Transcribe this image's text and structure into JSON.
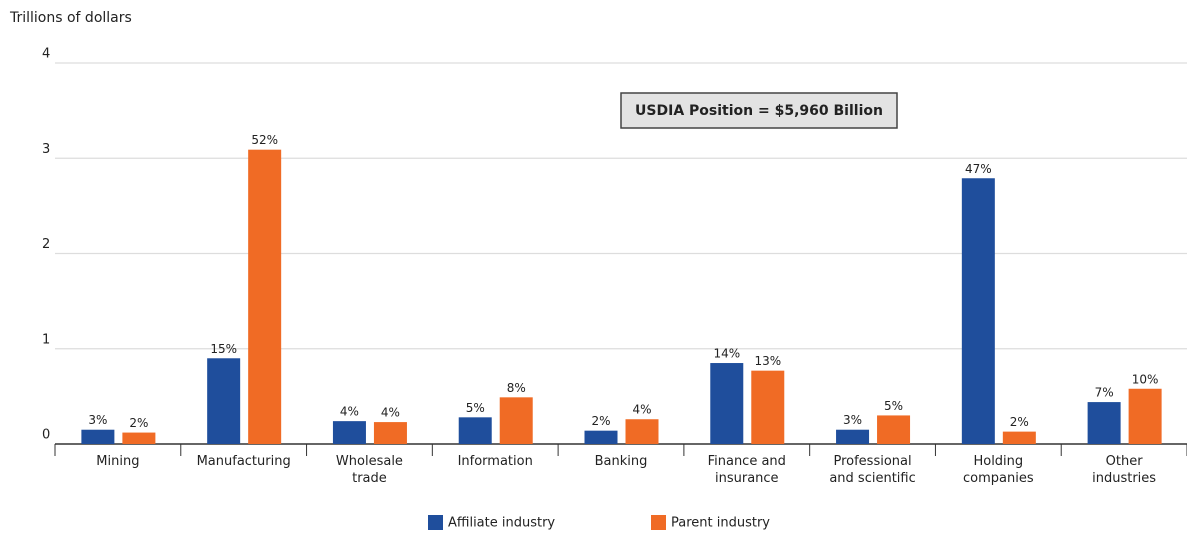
{
  "chart_data": {
    "type": "bar",
    "y_axis_label": "Trillions of dollars",
    "annotation": "USDIA Position = $5,960 Billion",
    "categories": [
      "Mining",
      "Manufacturing",
      "Wholesale trade",
      "Information",
      "Banking",
      "Finance and insurance",
      "Professional and scientific",
      "Holding companies",
      "Other industries"
    ],
    "series": [
      {
        "name": "Affiliate industry",
        "color": "#1f4e9c",
        "values": [
          0.15,
          0.9,
          0.24,
          0.28,
          0.14,
          0.85,
          0.15,
          2.79,
          0.44
        ],
        "value_labels": [
          "3%",
          "15%",
          "4%",
          "5%",
          "2%",
          "14%",
          "3%",
          "47%",
          "7%"
        ]
      },
      {
        "name": "Parent industry",
        "color": "#f06b25",
        "values": [
          0.12,
          3.09,
          0.23,
          0.49,
          0.26,
          0.77,
          0.3,
          0.13,
          0.58
        ],
        "value_labels": [
          "2%",
          "52%",
          "4%",
          "8%",
          "4%",
          "13%",
          "5%",
          "2%",
          "10%"
        ]
      }
    ],
    "ylim": [
      0,
      4
    ],
    "yticks": [
      0,
      1,
      2,
      3,
      4
    ],
    "grid": true
  }
}
